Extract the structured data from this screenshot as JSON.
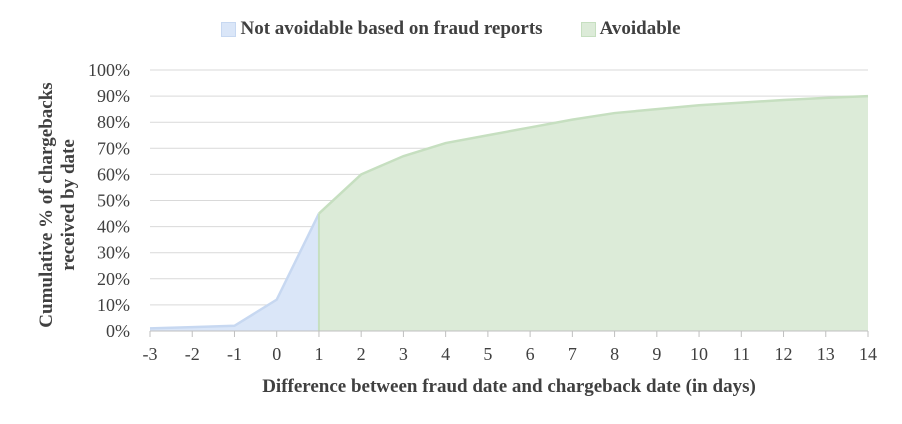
{
  "legend": {
    "series_a": "Not avoidable based on fraud reports",
    "series_b": "Avoidable"
  },
  "colors": {
    "not_avoidable_fill": "#dae6f8",
    "not_avoidable_line": "#c7d8f1",
    "avoidable_fill": "#dcebd8",
    "avoidable_line": "#c6dfc0",
    "grid": "#d9d9d9",
    "text": "#404040"
  },
  "chart_data": {
    "type": "area",
    "title": "",
    "xlabel": "Difference between fraud date and chargeback date (in days)",
    "ylabel_line1": "Cumulative % of chargebacks",
    "ylabel_line2": "received by date",
    "x": [
      -3,
      -2,
      -1,
      0,
      1,
      2,
      3,
      4,
      5,
      6,
      7,
      8,
      9,
      10,
      11,
      12,
      13,
      14
    ],
    "y": [
      1,
      1.5,
      2,
      12,
      45,
      60,
      67,
      72,
      75,
      78,
      81,
      83.5,
      85,
      86.5,
      87.5,
      88.5,
      89.3,
      90
    ],
    "series": [
      {
        "name": "Not avoidable based on fraud reports",
        "x_range": [
          -3,
          1
        ]
      },
      {
        "name": "Avoidable",
        "x_range": [
          1,
          14
        ]
      }
    ],
    "xlim": [
      -3,
      14
    ],
    "ylim": [
      0,
      100
    ],
    "yticks": [
      "0%",
      "10%",
      "20%",
      "30%",
      "40%",
      "50%",
      "60%",
      "70%",
      "80%",
      "90%",
      "100%"
    ],
    "xticks": [
      "-3",
      "-2",
      "-1",
      "0",
      "1",
      "2",
      "3",
      "4",
      "5",
      "6",
      "7",
      "8",
      "9",
      "10",
      "11",
      "12",
      "13",
      "14"
    ],
    "grid": true,
    "legend_position": "top-center"
  }
}
